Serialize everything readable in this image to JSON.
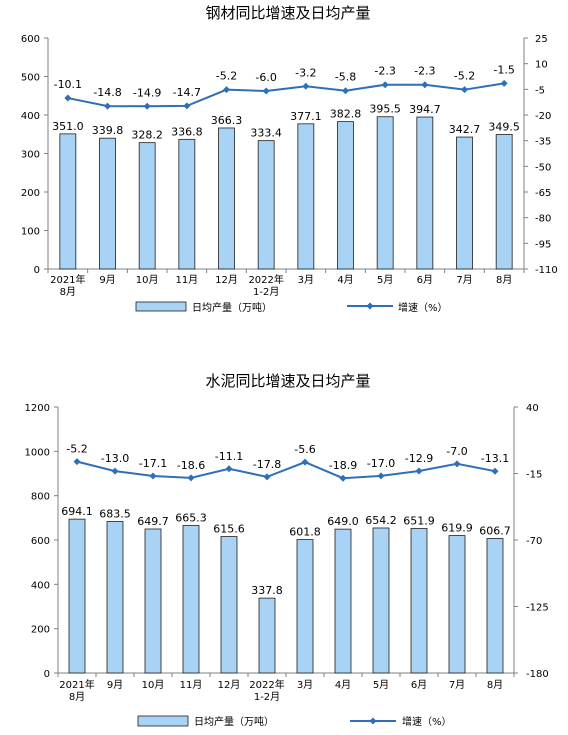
{
  "chart_data": [
    {
      "type": "bar",
      "title": "钢材同比增速及日均产量",
      "categories": [
        "2021年\n8月",
        "9月",
        "10月",
        "11月",
        "12月",
        "2022年\n1-2月",
        "3月",
        "4月",
        "5月",
        "6月",
        "7月",
        "8月"
      ],
      "series": [
        {
          "name": "日均产量（万吨）",
          "type": "bar",
          "axis": "left",
          "values": [
            351.0,
            339.8,
            328.2,
            336.8,
            366.3,
            333.4,
            377.1,
            382.8,
            395.5,
            394.7,
            342.7,
            349.5
          ],
          "labels": [
            "351.0",
            "339.8",
            "328.2",
            "336.8",
            "366.3",
            "333.4",
            "377.1",
            "382.8",
            "395.5",
            "394.7",
            "342.7",
            "349.5"
          ]
        },
        {
          "name": "增速（%）",
          "type": "line",
          "axis": "right",
          "values": [
            -10.1,
            -14.8,
            -14.9,
            -14.7,
            -5.2,
            -6.0,
            -3.2,
            -5.8,
            -2.3,
            -2.3,
            -5.2,
            -1.5
          ],
          "labels": [
            "-10.1",
            "-14.8",
            "-14.9",
            "-14.7",
            "-5.2",
            "-6.0",
            "-3.2",
            "-5.8",
            "-2.3",
            "-2.3",
            "-5.2",
            "-1.5"
          ]
        }
      ],
      "y_left": {
        "min": 0,
        "max": 600,
        "ticks": [
          "0",
          "100",
          "200",
          "300",
          "400",
          "500",
          "600"
        ]
      },
      "y_right": {
        "min": -110,
        "max": 25,
        "ticks": [
          "-110",
          "-95",
          "-80",
          "-65",
          "-50",
          "-35",
          "-20",
          "-5",
          "10",
          "25"
        ]
      },
      "grid": false,
      "legend_position": "bottom",
      "colors": {
        "bar_fill": "#a9d3f5",
        "bar_stroke": "#1f1f1f",
        "line": "#2e6fb8",
        "text": "#000000",
        "axis": "#808080"
      }
    },
    {
      "type": "bar",
      "title": "水泥同比增速及日均产量",
      "categories": [
        "2021年\n8月",
        "9月",
        "10月",
        "11月",
        "12月",
        "2022年\n1-2月",
        "3月",
        "4月",
        "5月",
        "6月",
        "7月",
        "8月"
      ],
      "series": [
        {
          "name": "日均产量（万吨）",
          "type": "bar",
          "axis": "left",
          "values": [
            694.1,
            683.5,
            649.7,
            665.3,
            615.6,
            337.8,
            601.8,
            649.0,
            654.2,
            651.9,
            619.9,
            606.7
          ],
          "labels": [
            "694.1",
            "683.5",
            "649.7",
            "665.3",
            "615.6",
            "337.8",
            "601.8",
            "649.0",
            "654.2",
            "651.9",
            "619.9",
            "606.7"
          ]
        },
        {
          "name": "增速（%）",
          "type": "line",
          "axis": "right",
          "values": [
            -5.2,
            -13.0,
            -17.1,
            -18.6,
            -11.1,
            -17.8,
            -5.6,
            -18.9,
            -17.0,
            -12.9,
            -7.0,
            -13.1
          ],
          "labels": [
            "-5.2",
            "-13.0",
            "-17.1",
            "-18.6",
            "-11.1",
            "-17.8",
            "-5.6",
            "-18.9",
            "-17.0",
            "-12.9",
            "-7.0",
            "-13.1"
          ]
        }
      ],
      "y_left": {
        "min": 0,
        "max": 1200,
        "ticks": [
          "0",
          "200",
          "400",
          "600",
          "800",
          "1000",
          "1200"
        ]
      },
      "y_right": {
        "min": -180,
        "max": 40,
        "ticks": [
          "-180",
          "-125",
          "-70",
          "-15",
          "40"
        ]
      },
      "grid": false,
      "legend_position": "bottom",
      "colors": {
        "bar_fill": "#a9d3f5",
        "bar_stroke": "#1f1f1f",
        "line": "#2e6fb8",
        "text": "#000000",
        "axis": "#808080"
      }
    }
  ]
}
